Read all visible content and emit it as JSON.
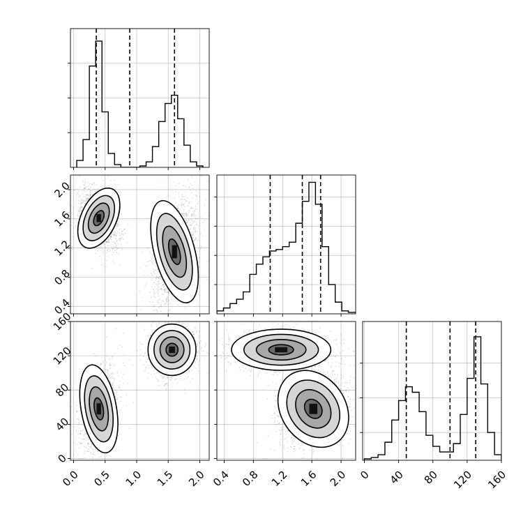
{
  "chart_data": {
    "type": "corner",
    "title": "",
    "style": {
      "line_color": "#000000",
      "grid_color": "#b0b0b0",
      "scatter_color": "#000000",
      "background": "#ffffff"
    },
    "variables": [
      {
        "label": "",
        "range": [
          -0.05,
          2.15
        ],
        "ticks": [
          0.0,
          0.5,
          1.0,
          1.5,
          2.0
        ],
        "tick_labels": [
          "0.0",
          "0.5",
          "1.0",
          "1.5",
          "2.0"
        ]
      },
      {
        "label": "",
        "range": [
          0.3,
          2.2
        ],
        "ticks": [
          0.4,
          0.8,
          1.2,
          1.6,
          2.0
        ],
        "tick_labels": [
          "0.4",
          "0.8",
          "1.2",
          "1.6",
          "2.0"
        ]
      },
      {
        "label": "",
        "range": [
          -2,
          160
        ],
        "ticks": [
          0,
          40,
          80,
          120,
          160
        ],
        "tick_labels": [
          "0",
          "40",
          "80",
          "120",
          "160"
        ]
      }
    ],
    "histograms": [
      {
        "variable": 0,
        "bin_edges": [
          0.05,
          0.15,
          0.25,
          0.35,
          0.45,
          0.55,
          0.65,
          0.75,
          0.85,
          0.95,
          1.05,
          1.15,
          1.25,
          1.35,
          1.45,
          1.55,
          1.65,
          1.75,
          1.85,
          1.95,
          2.05
        ],
        "counts": [
          0.05,
          0.2,
          0.73,
          0.91,
          0.4,
          0.1,
          0.02,
          0.0,
          0.0,
          0.0,
          0.01,
          0.04,
          0.15,
          0.33,
          0.46,
          0.52,
          0.35,
          0.16,
          0.04,
          0.01
        ],
        "quantiles": [
          0.36,
          0.89,
          1.6
        ],
        "ymax": 1.0,
        "yticks": [
          0.25,
          0.5,
          0.75
        ]
      },
      {
        "variable": 1,
        "bin_edges": [
          0.3,
          0.39,
          0.48,
          0.57,
          0.66,
          0.75,
          0.84,
          0.93,
          1.02,
          1.11,
          1.2,
          1.29,
          1.38,
          1.47,
          1.56,
          1.65,
          1.74,
          1.83,
          1.92,
          2.01,
          2.1,
          2.2
        ],
        "counts": [
          0.02,
          0.04,
          0.07,
          0.1,
          0.15,
          0.27,
          0.34,
          0.39,
          0.43,
          0.44,
          0.46,
          0.49,
          0.62,
          0.77,
          0.9,
          0.75,
          0.46,
          0.2,
          0.08,
          0.02,
          0.01
        ],
        "quantiles": [
          1.03,
          1.47,
          1.72
        ],
        "ymax": 0.95,
        "yticks": [
          0.2,
          0.4,
          0.6,
          0.8
        ]
      },
      {
        "variable": 2,
        "bin_edges": [
          0,
          8,
          16,
          24,
          32,
          40,
          48,
          56,
          64,
          72,
          80,
          88,
          96,
          104,
          112,
          120,
          128,
          136,
          144,
          152,
          160
        ],
        "counts": [
          0.01,
          0.02,
          0.04,
          0.13,
          0.29,
          0.43,
          0.53,
          0.49,
          0.35,
          0.18,
          0.1,
          0.06,
          0.06,
          0.12,
          0.33,
          0.59,
          0.89,
          0.55,
          0.2,
          0.04
        ],
        "quantiles": [
          49,
          100,
          130
        ],
        "ymax": 1.0,
        "yticks": [
          0.2,
          0.45,
          0.7
        ]
      }
    ],
    "contours_2d": [
      {
        "x": 0,
        "y": 1,
        "clusters": [
          {
            "cx": 0.4,
            "cy": 1.61,
            "sx": 0.14,
            "sy": 0.22,
            "rot": -25,
            "n": 1300
          },
          {
            "cx": 1.6,
            "cy": 1.15,
            "sx": 0.16,
            "sy": 0.36,
            "rot": 15,
            "n": 1600
          }
        ]
      },
      {
        "x": 0,
        "y": 2,
        "clusters": [
          {
            "cx": 0.4,
            "cy": 58,
            "sx": 0.14,
            "sy": 26,
            "rot": 10,
            "n": 1300
          },
          {
            "cx": 1.56,
            "cy": 127,
            "sx": 0.19,
            "sy": 15,
            "rot": 0,
            "n": 1600
          }
        ]
      },
      {
        "x": 1,
        "y": 2,
        "clusters": [
          {
            "cx": 1.18,
            "cy": 127,
            "sx": 0.34,
            "sy": 12,
            "rot": 0,
            "n": 1500
          },
          {
            "cx": 1.62,
            "cy": 58,
            "sx": 0.22,
            "sy": 24,
            "rot": 35,
            "n": 1400
          }
        ]
      }
    ]
  }
}
